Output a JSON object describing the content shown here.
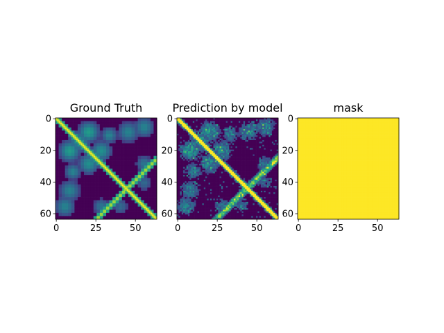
{
  "chart_data": [
    {
      "type": "heatmap",
      "title": "Ground Truth",
      "grid_size": 64,
      "xlim": [
        -0.5,
        63.5
      ],
      "ylim": [
        63.5,
        -0.5
      ],
      "xticks": [
        0,
        25,
        50
      ],
      "yticks": [
        0,
        20,
        40,
        60
      ],
      "colormap": "viridis",
      "pattern": "symmetric contact map: bright main diagonal, bright anti-diagonal band crossing near (45,45), blocky mid-intensity regions near (10-25, 0-30) and (0-15, 45-64)",
      "grid": false
    },
    {
      "type": "heatmap",
      "title": "Prediction by model",
      "grid_size": 64,
      "xlim": [
        -0.5,
        63.5
      ],
      "ylim": [
        63.5,
        -0.5
      ],
      "xticks": [
        0,
        25,
        50
      ],
      "yticks": [
        0,
        20,
        40,
        60
      ],
      "colormap": "viridis",
      "pattern": "noisy version of ground truth with bright main diagonal and anti-diagonal band",
      "grid": false
    },
    {
      "type": "heatmap",
      "title": "mask",
      "grid_size": 64,
      "xlim": [
        -0.5,
        63.5
      ],
      "ylim": [
        63.5,
        -0.5
      ],
      "xticks": [
        0,
        25,
        50
      ],
      "yticks": [
        0,
        20,
        40,
        60
      ],
      "colormap": "viridis",
      "uniform_value": 1.0,
      "uniform_color": "#fde725",
      "grid": false
    }
  ],
  "colors": {
    "viridis_low": "#440154",
    "viridis_mid_low": "#31688e",
    "viridis_mid": "#21918c",
    "viridis_mid_high": "#35b779",
    "viridis_high": "#fde725"
  }
}
